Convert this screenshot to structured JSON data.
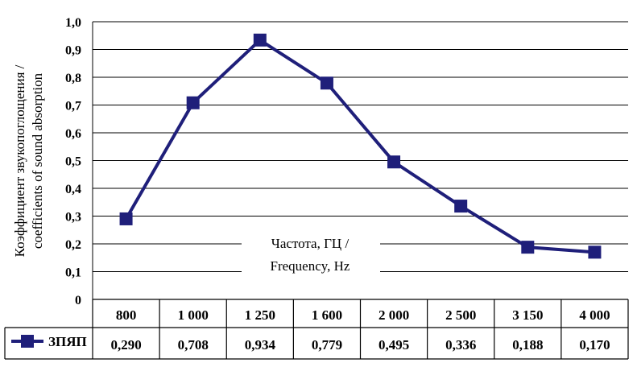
{
  "chart_data": {
    "type": "line",
    "ylabel": "Коэффициент звукопоглощения / coefficients of sound absorption",
    "ylabel_lines": [
      "Коэффициент звукопоглощения /",
      "coefficients of sound absorption"
    ],
    "xlabel": "Частота, ГЦ / Frequency, Hz",
    "xlabel_lines": [
      "Частота, ГЦ /",
      "Frequency, Hz"
    ],
    "categories": [
      "800",
      "1 000",
      "1 250",
      "1 600",
      "2 000",
      "2 500",
      "3 150",
      "4 000"
    ],
    "series": [
      {
        "name": "ЗПЯП",
        "values": [
          0.29,
          0.708,
          0.934,
          0.779,
          0.495,
          0.336,
          0.188,
          0.17
        ],
        "value_labels": [
          "0,290",
          "0,708",
          "0,934",
          "0,779",
          "0,495",
          "0,336",
          "0,188",
          "0,170"
        ],
        "color": "#1f1f7a"
      }
    ],
    "ylim": [
      0,
      1.0
    ],
    "yticks": [
      "0",
      "0,1",
      "0,2",
      "0,3",
      "0,4",
      "0,5",
      "0,6",
      "0,7",
      "0,8",
      "0,9",
      "1,0"
    ],
    "grid": true,
    "legend": "data-table-left"
  }
}
